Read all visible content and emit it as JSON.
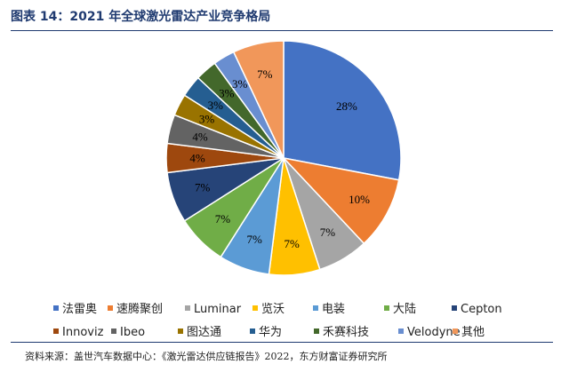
{
  "header": {
    "title": "图表 14：2021 年全球激光雷达产业竞争格局"
  },
  "footer": {
    "source": "资料来源：盖世汽车数据中心：《激光雷达供应链报告》2022，东方财富证券研究所"
  },
  "chart_data": {
    "type": "pie",
    "slices": [
      {
        "name": "法雷奥",
        "value": 28,
        "label": "28%",
        "color": "#4472c4"
      },
      {
        "name": "速腾聚创",
        "value": 10,
        "label": "10%",
        "color": "#ed7d31"
      },
      {
        "name": "Luminar",
        "value": 7,
        "label": "7%",
        "color": "#a5a5a5"
      },
      {
        "name": "览沃",
        "value": 7,
        "label": "7%",
        "color": "#ffc000"
      },
      {
        "name": "电装",
        "value": 7,
        "label": "7%",
        "color": "#5b9bd5"
      },
      {
        "name": "大陆",
        "value": 7,
        "label": "7%",
        "color": "#70ad47"
      },
      {
        "name": "Cepton",
        "value": 7,
        "label": "7%",
        "color": "#264478"
      },
      {
        "name": "Innoviz",
        "value": 4,
        "label": "4%",
        "color": "#9e480e"
      },
      {
        "name": "Ibeo",
        "value": 4,
        "label": "4%",
        "color": "#636363"
      },
      {
        "name": "图达通",
        "value": 3,
        "label": "3%",
        "color": "#997300"
      },
      {
        "name": "华为",
        "value": 3,
        "label": "3%",
        "color": "#255e91"
      },
      {
        "name": "禾赛科技",
        "value": 3,
        "label": "3%",
        "color": "#43682b"
      },
      {
        "name": "Velodyne",
        "value": 3,
        "label": "3%",
        "color": "#698ed0"
      },
      {
        "name": "其他",
        "value": 7,
        "label": "7%",
        "color": "#f1975a"
      }
    ],
    "legend_position": "bottom"
  }
}
